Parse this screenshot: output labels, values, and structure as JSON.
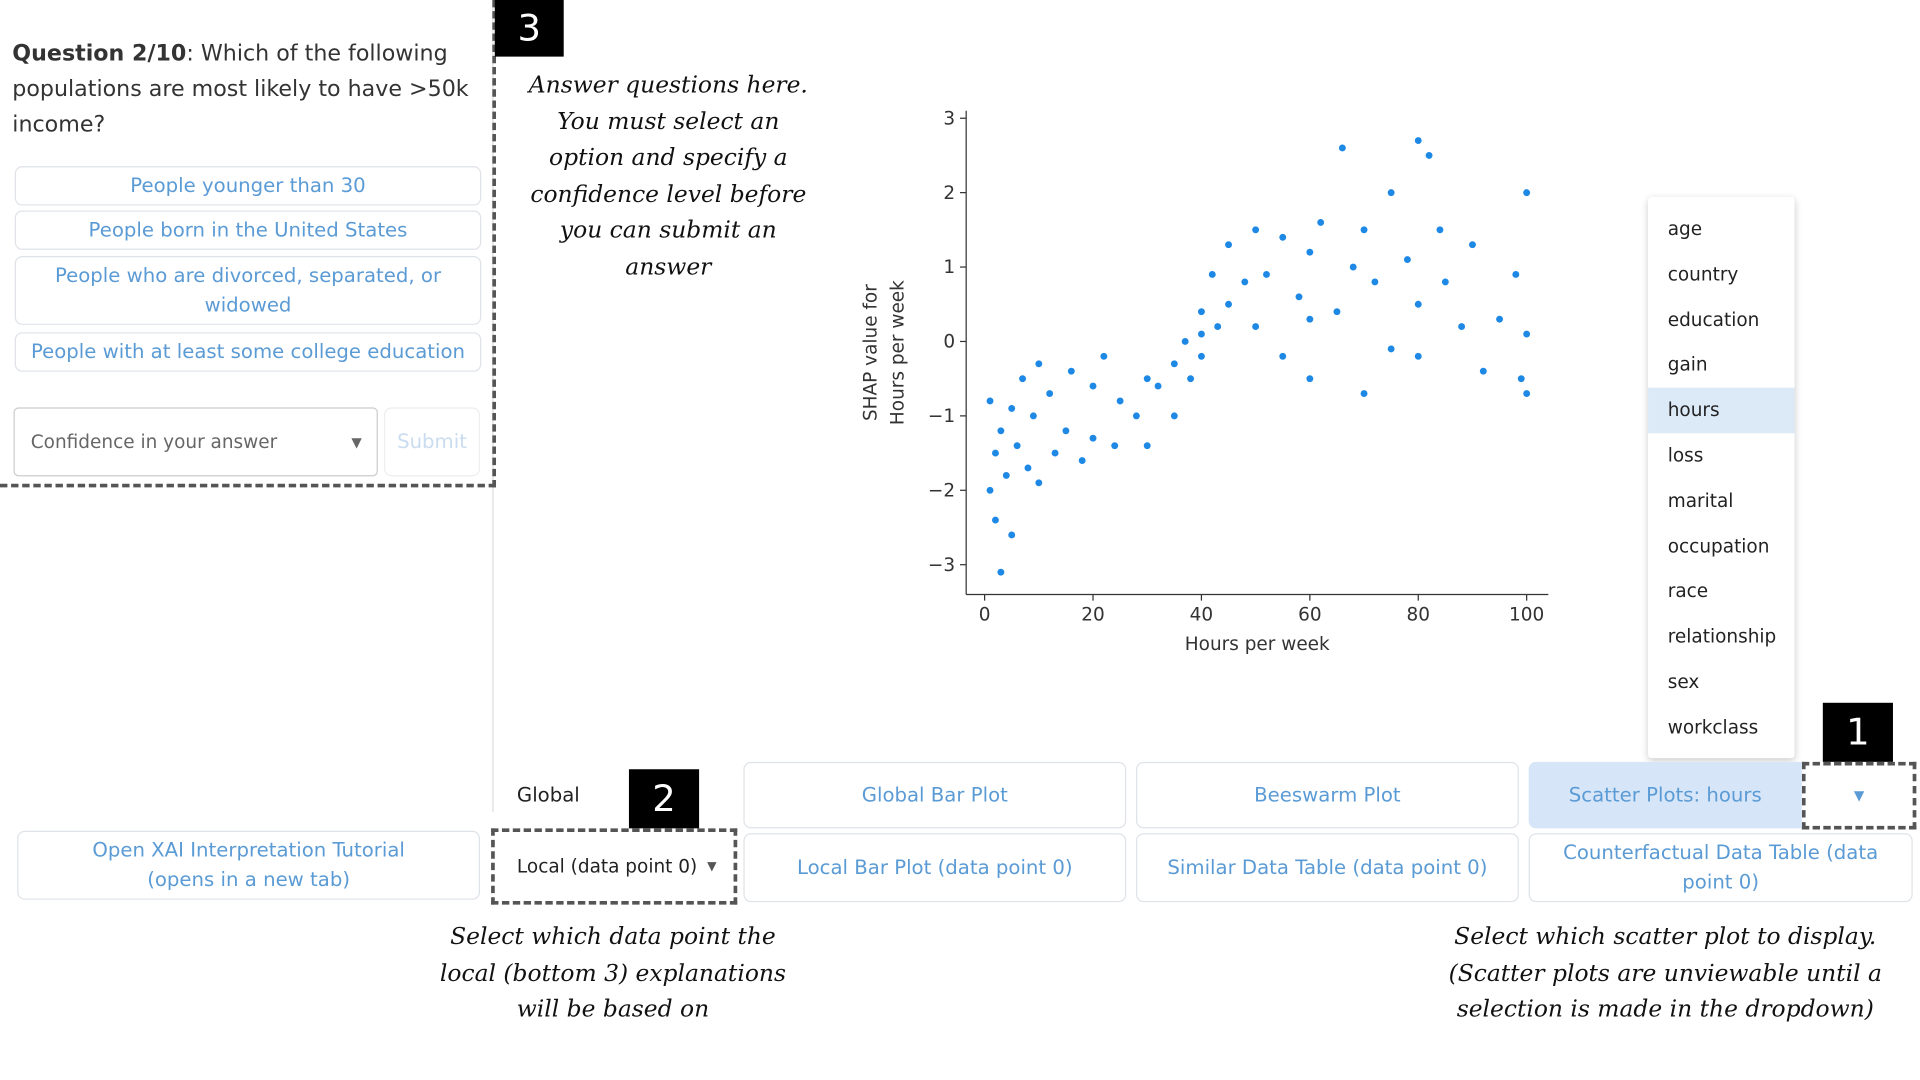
{
  "question": {
    "label": "Question 2/10",
    "text": ": Which of the following populations are most likely to have >50k income?"
  },
  "options": [
    "People younger than 30",
    "People born in the United States",
    "People who are divorced, separated, or widowed",
    "People with at least some college education"
  ],
  "confidence_placeholder": "Confidence in your answer",
  "submit": "Submit",
  "badges": [
    "1",
    "2",
    "3"
  ],
  "notes": {
    "answer": [
      "Answer questions here.",
      "You must select an",
      "option and specify a",
      "confidence level before",
      "you can submit an",
      "answer"
    ],
    "local": [
      "Select which data point the",
      "local (bottom 3) explanations",
      "will be based on"
    ],
    "scatter": [
      "Select which scatter plot to display.",
      "(Scatter plots are unviewable until a",
      "selection is made in the dropdown)"
    ]
  },
  "feature_menu": {
    "items": [
      "age",
      "country",
      "education",
      "gain",
      "hours",
      "loss",
      "marital",
      "occupation",
      "race",
      "relationship",
      "sex",
      "workclass"
    ],
    "selected": "hours"
  },
  "controls": {
    "global_label": "Global",
    "global_bar": "Global Bar Plot",
    "beeswarm": "Beeswarm Plot",
    "scatter": "Scatter Plots: hours",
    "tutorial": [
      "Open XAI Interpretation Tutorial",
      "(opens in a new tab)"
    ],
    "local_select": "Local (data point 0)",
    "local_bar": "Local Bar Plot (data point 0)",
    "similar": "Similar Data Table (data point 0)",
    "counterfactual": "Counterfactual Data Table (data point 0)"
  },
  "chart_data": {
    "type": "scatter",
    "x_label": "Hours per week",
    "y_label": [
      "SHAP value for",
      "Hours per week"
    ],
    "color": "#1e88e5",
    "x": [
      1,
      1,
      2,
      2,
      3,
      3,
      4,
      5,
      5,
      6,
      7,
      8,
      9,
      10,
      10,
      12,
      13,
      15,
      16,
      18,
      20,
      20,
      22,
      24,
      25,
      28,
      30,
      30,
      32,
      35,
      35,
      37,
      38,
      40,
      40,
      40,
      42,
      43,
      45,
      45,
      48,
      50,
      50,
      52,
      55,
      55,
      58,
      60,
      60,
      60,
      62,
      65,
      66,
      68,
      70,
      70,
      72,
      75,
      75,
      78,
      80,
      80,
      80,
      82,
      84,
      85,
      88,
      90,
      92,
      95,
      98,
      99,
      100,
      100,
      100
    ],
    "y": [
      -0.8,
      -2.0,
      -1.5,
      -2.4,
      -1.2,
      -3.1,
      -1.8,
      -0.9,
      -2.6,
      -1.4,
      -0.5,
      -1.7,
      -1.0,
      -0.3,
      -1.9,
      -0.7,
      -1.5,
      -1.2,
      -0.4,
      -1.6,
      -0.6,
      -1.3,
      -0.2,
      -1.4,
      -0.8,
      -1.0,
      -0.5,
      -1.4,
      -0.6,
      -0.3,
      -1.0,
      0.0,
      -0.5,
      0.1,
      -0.2,
      0.4,
      0.9,
      0.2,
      1.3,
      0.5,
      0.8,
      0.2,
      1.5,
      0.9,
      -0.2,
      1.4,
      0.6,
      1.2,
      -0.5,
      0.3,
      1.6,
      0.4,
      2.6,
      1.0,
      -0.7,
      1.5,
      0.8,
      2.0,
      -0.1,
      1.1,
      2.7,
      0.5,
      -0.2,
      2.5,
      1.5,
      0.8,
      0.2,
      1.3,
      -0.4,
      0.3,
      0.9,
      -0.5,
      2.0,
      0.1,
      -0.7
    ],
    "xlim": [
      -3.4,
      104
    ],
    "ylim": [
      -3.4,
      3.1
    ],
    "xticks": [
      0,
      20,
      40,
      60,
      80,
      100
    ],
    "yticks": [
      {
        "value": -3,
        "label": "−3"
      },
      {
        "value": -2,
        "label": "−2"
      },
      {
        "value": -1,
        "label": "−1"
      },
      0,
      1,
      2,
      3
    ]
  }
}
